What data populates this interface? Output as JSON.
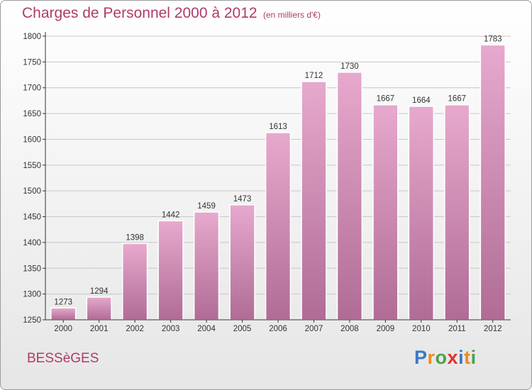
{
  "header": {
    "title": "Charges de Personnel 2000 à 2012",
    "subtitle": "(en milliers d'€)"
  },
  "footer": {
    "location": "BESSèGES",
    "brand": "Proxiti",
    "brand_letters": [
      "P",
      "r",
      "o",
      "x",
      "i",
      "t",
      "i"
    ],
    "brand_colors": [
      "#3a78c8",
      "#f08a1c",
      "#4aa34a",
      "#e0332d",
      "#3a78c8",
      "#f08a1c",
      "#4aa34a"
    ]
  },
  "colors": {
    "bar_top": "#e7a9cd",
    "bar_bottom": "#b06c95",
    "grid": "#c8c8c8",
    "axis": "#333333"
  },
  "chart_data": {
    "type": "bar",
    "title": "Charges de Personnel 2000 à 2012",
    "subtitle": "(en milliers d'€)",
    "xlabel": "",
    "ylabel": "",
    "categories": [
      "2000",
      "2001",
      "2002",
      "2003",
      "2004",
      "2005",
      "2006",
      "2007",
      "2008",
      "2009",
      "2010",
      "2011",
      "2012"
    ],
    "values": [
      1273,
      1294,
      1398,
      1442,
      1459,
      1473,
      1613,
      1712,
      1730,
      1667,
      1664,
      1667,
      1783
    ],
    "ylim": [
      1250,
      1800
    ],
    "yticks": [
      1250,
      1300,
      1350,
      1400,
      1450,
      1500,
      1550,
      1600,
      1650,
      1700,
      1750,
      1800
    ],
    "grid": true,
    "legend": "none"
  }
}
